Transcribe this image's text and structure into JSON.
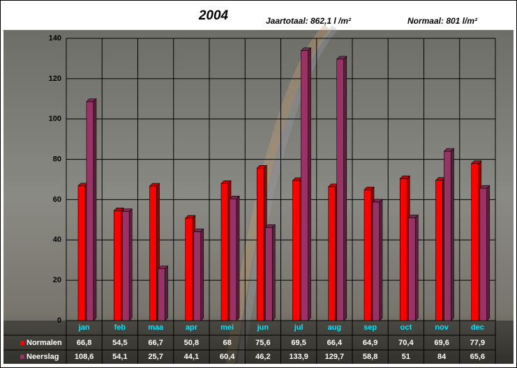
{
  "chart_data": {
    "type": "bar",
    "title": "2004",
    "annotations": [
      "Jaartotaal: 862,1 l /m²",
      "Normaal: 801 l/m²"
    ],
    "categories": [
      "jan",
      "feb",
      "maa",
      "apr",
      "mei",
      "jun",
      "jul",
      "aug",
      "sep",
      "oct",
      "nov",
      "dec"
    ],
    "series": [
      {
        "name": "Normalen",
        "color": "#ff0000",
        "values": [
          66.8,
          54.5,
          66.7,
          50.8,
          68,
          75.6,
          69.5,
          66.4,
          64.9,
          70.4,
          69.6,
          77.9
        ],
        "value_labels": [
          "66,8",
          "54,5",
          "66,7",
          "50,8",
          "68",
          "75,6",
          "69,5",
          "66,4",
          "64,9",
          "70,4",
          "69,6",
          "77,9"
        ]
      },
      {
        "name": "Neerslag",
        "color": "#993366",
        "values": [
          108.6,
          54.1,
          25.7,
          44.1,
          60.4,
          46.2,
          133.9,
          129.7,
          58.8,
          51,
          84,
          65.6
        ],
        "value_labels": [
          "108,6",
          "54,1",
          "25,7",
          "44,1",
          "60,4",
          "46,2",
          "133,9",
          "129,7",
          "58,8",
          "51",
          "84",
          "65,6"
        ]
      }
    ],
    "ylim": [
      0,
      140
    ],
    "yticks": [
      0,
      20,
      40,
      60,
      80,
      100,
      120,
      140
    ],
    "grid": true
  }
}
